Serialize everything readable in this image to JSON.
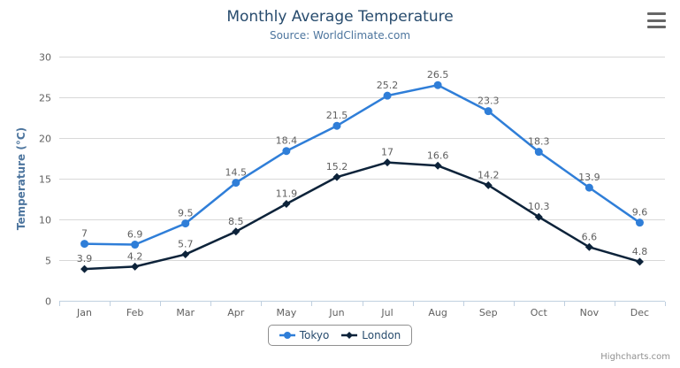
{
  "chart_data": {
    "type": "line",
    "title": "Monthly Average Temperature",
    "subtitle": "Source: WorldClimate.com",
    "categories": [
      "Jan",
      "Feb",
      "Mar",
      "Apr",
      "May",
      "Jun",
      "Jul",
      "Aug",
      "Sep",
      "Oct",
      "Nov",
      "Dec"
    ],
    "series": [
      {
        "name": "Tokyo",
        "color": "#2f7ed8",
        "marker": "circle",
        "values": [
          7,
          6.9,
          9.5,
          14.5,
          18.4,
          21.5,
          25.2,
          26.5,
          23.3,
          18.3,
          13.9,
          9.6
        ]
      },
      {
        "name": "London",
        "color": "#0d233a",
        "marker": "diamond",
        "values": [
          3.9,
          4.2,
          5.7,
          8.5,
          11.9,
          15.2,
          17,
          16.6,
          14.2,
          10.3,
          6.6,
          4.8
        ]
      }
    ],
    "xlabel": "",
    "ylabel": "Temperature (°C)",
    "ylim": [
      0,
      30
    ],
    "ytick_interval": 5,
    "grid": true,
    "data_labels": true,
    "legend_position": "bottom",
    "styles": {
      "title_color": "#274b6d",
      "subtitle_color": "#4d759e",
      "axis_title_color": "#4d759e",
      "tick_label_color": "#606060",
      "data_label_color": "#606060",
      "grid_color": "#d8d8d8",
      "axis_line_color": "#c0d0e0",
      "legend_text_color": "#274b6d",
      "legend_border_color": "#909090",
      "credits_color": "#909090",
      "burger_color": "#666666"
    }
  },
  "credits": {
    "label": "Highcharts.com"
  }
}
